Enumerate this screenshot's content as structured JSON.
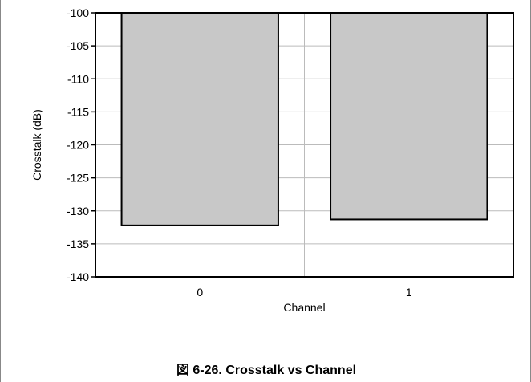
{
  "caption": "図 6-26. Crosstalk vs Channel",
  "chart_data": {
    "type": "bar",
    "categories": [
      "0",
      "1"
    ],
    "values": [
      -132.2,
      -131.3
    ],
    "bar_base": -100,
    "xlabel": "Channel",
    "ylabel": "Crosstalk (dB)",
    "ylim": [
      -140,
      -100
    ],
    "yticks": [
      -100,
      -105,
      -110,
      -115,
      -120,
      -125,
      -130,
      -135,
      -140
    ],
    "grid": true,
    "bar_color": "#c8c8c8",
    "bar_edge_color": "#000000",
    "grid_color": "#bbbbbb"
  }
}
